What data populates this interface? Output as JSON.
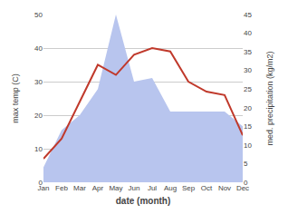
{
  "chart_data": {
    "type": "line",
    "xlabel": "date (month)",
    "ylabel": "max temp (C)",
    "y2label": "med. precipitation (kg/m2)",
    "categories": [
      "Jan",
      "Feb",
      "Mar",
      "Apr",
      "May",
      "Jun",
      "Jul",
      "Aug",
      "Sep",
      "Oct",
      "Nov",
      "Dec"
    ],
    "series": [
      {
        "type": "area",
        "axis": "y2",
        "color": "#b8c5ee",
        "values": [
          4,
          14,
          18,
          25,
          45,
          27,
          28,
          19,
          19,
          19,
          19,
          15
        ]
      },
      {
        "type": "line",
        "color": "#c0392b",
        "values": [
          7,
          13,
          24,
          35,
          32,
          38,
          40,
          39,
          30,
          27,
          26,
          14
        ]
      }
    ],
    "ylim": [
      0,
      50
    ],
    "yticks": [
      0,
      10,
      20,
      30,
      40,
      50
    ],
    "y2lim": [
      0,
      45
    ],
    "y2ticks": [
      0,
      5,
      10,
      15,
      20,
      25,
      30,
      35,
      40,
      45
    ],
    "grid": true
  }
}
